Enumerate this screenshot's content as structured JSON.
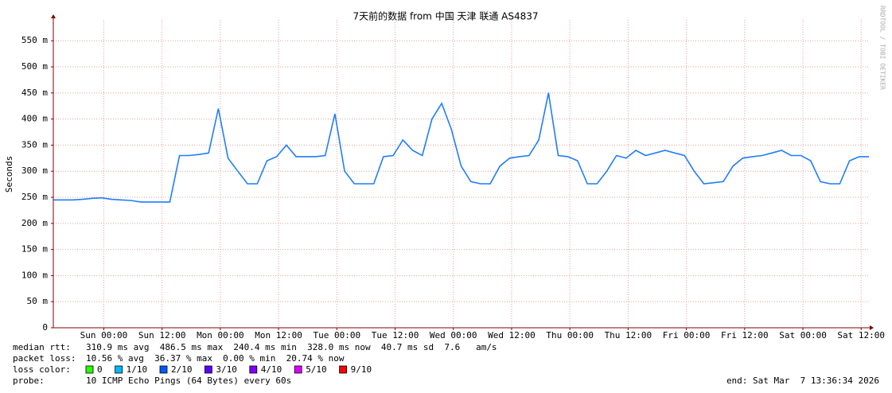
{
  "chart_data": {
    "type": "line",
    "title": "7天前的数据 from 中国 天津 联通 AS4837",
    "y_label": "Seconds",
    "watermark": "RRDTOOL / TOBI OETIKER",
    "xlim": [
      0,
      168
    ],
    "ylim": [
      0,
      0.59
    ],
    "grid": true,
    "yticks": [
      0,
      {
        "value": 0.05,
        "label": "50 m"
      },
      {
        "value": 0.1,
        "label": "100 m"
      },
      {
        "value": 0.15,
        "label": "150 m"
      },
      {
        "value": 0.2,
        "label": "200 m"
      },
      {
        "value": 0.25,
        "label": "250 m"
      },
      {
        "value": 0.3,
        "label": "300 m"
      },
      {
        "value": 0.35,
        "label": "350 m"
      },
      {
        "value": 0.4,
        "label": "400 m"
      },
      {
        "value": 0.45,
        "label": "450 m"
      },
      {
        "value": 0.5,
        "label": "500 m"
      },
      {
        "value": 0.55,
        "label": "550 m"
      }
    ],
    "xticks": [
      {
        "value": 10.4,
        "label": "Sun 00:00"
      },
      {
        "value": 22.4,
        "label": "Sun 12:00"
      },
      {
        "value": 34.4,
        "label": "Mon 00:00"
      },
      {
        "value": 46.4,
        "label": "Mon 12:00"
      },
      {
        "value": 58.4,
        "label": "Tue 00:00"
      },
      {
        "value": 70.4,
        "label": "Tue 12:00"
      },
      {
        "value": 82.4,
        "label": "Wed 00:00"
      },
      {
        "value": 94.4,
        "label": "Wed 12:00"
      },
      {
        "value": 106.4,
        "label": "Thu 00:00"
      },
      {
        "value": 118.4,
        "label": "Thu 12:00"
      },
      {
        "value": 130.4,
        "label": "Fri 00:00"
      },
      {
        "value": 142.4,
        "label": "Fri 12:00"
      },
      {
        "value": 154.4,
        "label": "Sat 00:00"
      },
      {
        "value": 166.4,
        "label": "Sat 12:00"
      }
    ],
    "series": [
      {
        "color": "#1f7cff",
        "x": [
          0,
          2,
          4,
          6,
          8,
          10,
          12,
          14,
          16,
          18,
          20,
          22,
          24,
          26,
          28,
          30,
          32,
          34,
          36,
          38,
          40,
          42,
          44,
          46,
          48,
          50,
          52,
          54,
          56,
          58,
          60,
          62,
          64,
          66,
          68,
          70,
          72,
          74,
          76,
          78,
          80,
          82,
          84,
          86,
          88,
          90,
          92,
          94,
          96,
          98,
          100,
          102,
          104,
          106,
          108,
          110,
          112,
          114,
          116,
          118,
          120,
          122,
          124,
          126,
          128,
          130,
          132,
          134,
          136,
          138,
          140,
          142,
          144,
          146,
          148,
          150,
          152,
          154,
          156,
          158,
          160,
          162,
          164,
          166,
          168
        ],
        "values": [
          0.245,
          0.245,
          0.245,
          0.246,
          0.248,
          0.249,
          0.246,
          0.245,
          0.244,
          0.241,
          0.241,
          0.241,
          0.241,
          0.33,
          0.33,
          0.332,
          0.335,
          0.42,
          0.325,
          0.3,
          0.276,
          0.276,
          0.32,
          0.328,
          0.35,
          0.328,
          0.328,
          0.328,
          0.33,
          0.41,
          0.3,
          0.276,
          0.276,
          0.276,
          0.328,
          0.33,
          0.36,
          0.34,
          0.33,
          0.4,
          0.43,
          0.38,
          0.31,
          0.28,
          0.276,
          0.276,
          0.31,
          0.325,
          0.328,
          0.33,
          0.36,
          0.45,
          0.33,
          0.328,
          0.32,
          0.276,
          0.276,
          0.3,
          0.33,
          0.325,
          0.34,
          0.33,
          0.335,
          0.34,
          0.335,
          0.33,
          0.3,
          0.276,
          0.278,
          0.28,
          0.31,
          0.325,
          0.328,
          0.33,
          0.335,
          0.34,
          0.33,
          0.33,
          0.32,
          0.28,
          0.276,
          0.276,
          0.32,
          0.328,
          0.328
        ]
      }
    ],
    "stats": [
      {
        "label": "median rtt:",
        "text": "310.9 ms avg  486.5 ms max  240.4 ms min  328.0 ms now  40.7 ms sd  7.6   am/s"
      },
      {
        "label": "packet loss:",
        "text": "10.56 % avg  36.37 % max  0.00 % min  20.74 % now"
      }
    ],
    "loss_color_label": "loss color:",
    "loss_colors": [
      {
        "label": "0",
        "color": "#26ff00"
      },
      {
        "label": "1/10",
        "color": "#00b8ff"
      },
      {
        "label": "2/10",
        "color": "#0059ff"
      },
      {
        "label": "3/10",
        "color": "#5e00ff"
      },
      {
        "label": "4/10",
        "color": "#7e00ff"
      },
      {
        "label": "5/10",
        "color": "#dd00ff"
      },
      {
        "label": "9/10",
        "color": "#ff0000"
      }
    ],
    "probe_label": "probe:",
    "probe": "10 ICMP Echo Pings (64 Bytes) every 60s",
    "end": "end: Sat Mar  7 13:36:34 2026"
  }
}
